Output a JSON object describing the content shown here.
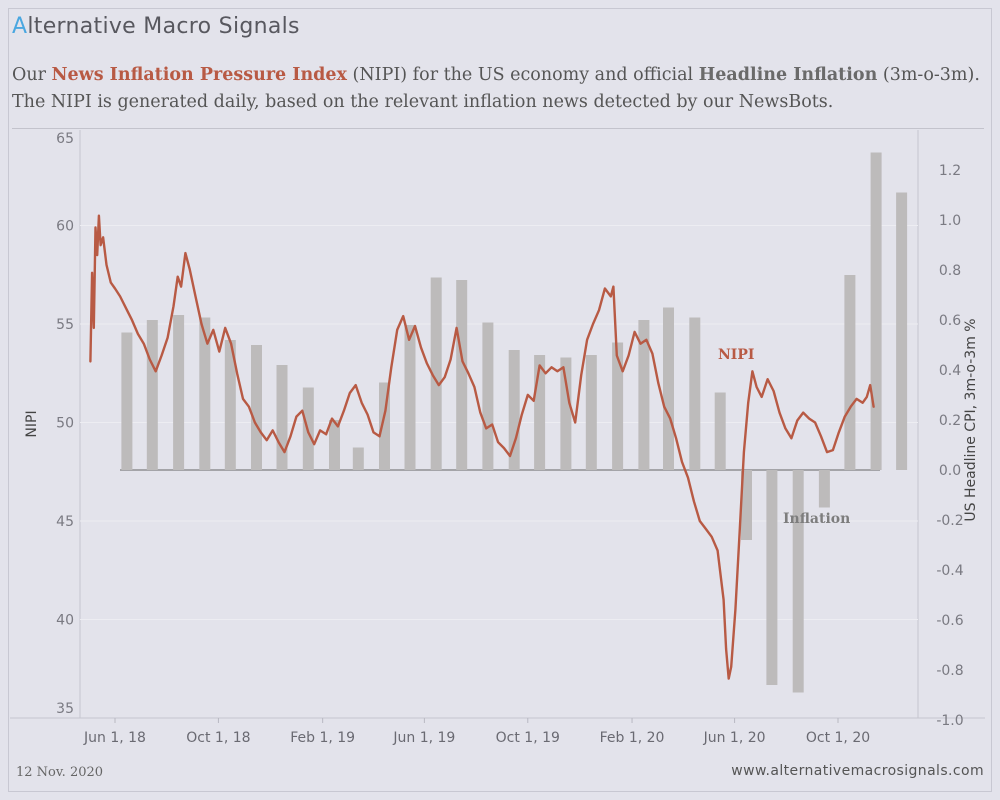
{
  "brand": {
    "first_letter": "A",
    "rest": "lternative Macro Signals"
  },
  "subtitle": {
    "line1_a": "Our ",
    "line1_nipi": "News Inflation Pressure Index",
    "line1_b": " (NIPI) for the US economy and official ",
    "line1_infl": "Headline Inflation",
    "line1_c": " (3m-o-3m).",
    "line2": "The NIPI is generated daily, based on the relevant inflation news detected by our NewsBots."
  },
  "footer": {
    "date": "12 Nov. 2020",
    "url": "www.alternativemacrosignals.com"
  },
  "colors": {
    "nipi": "#b85a44",
    "bars": "#bdbbbb",
    "background": "#e3e3eb"
  },
  "chart_data": {
    "type": "bar+line",
    "left_axis": {
      "label": "NIPI",
      "ticks": [
        35,
        40,
        45,
        50,
        55,
        60,
        65
      ],
      "range": [
        35,
        65
      ]
    },
    "right_axis": {
      "label": "US Headline CPI, 3m-o-3m %",
      "ticks": [
        "1.2",
        "1.0",
        "0.8",
        "0.6",
        "0.4",
        "0.2",
        "0.0",
        "-0.2",
        "-0.4",
        "-0.6",
        "-0.8",
        "-1.0"
      ],
      "range": [
        -1.0,
        1.3
      ]
    },
    "x_axis": {
      "ticks": [
        {
          "label": "Jun 1, 18",
          "date": "2018-06-01"
        },
        {
          "label": "Oct 1, 18",
          "date": "2018-10-01"
        },
        {
          "label": "Feb 1, 19",
          "date": "2019-02-01"
        },
        {
          "label": "Jun 1, 19",
          "date": "2019-06-01"
        },
        {
          "label": "Oct 1, 19",
          "date": "2019-10-01"
        },
        {
          "label": "Feb 1, 20",
          "date": "2020-02-01"
        },
        {
          "label": "Jun 1, 20",
          "date": "2020-06-01"
        },
        {
          "label": "Oct 1, 20",
          "date": "2020-10-01"
        }
      ],
      "range": [
        "2018-04-15",
        "2020-12-20"
      ]
    },
    "annotations": {
      "nipi": "NIPI",
      "inflation": "Inflation"
    },
    "inflation_series": [
      {
        "date": "2018-06-15",
        "value": 0.55
      },
      {
        "date": "2018-07-15",
        "value": 0.6
      },
      {
        "date": "2018-08-15",
        "value": 0.62
      },
      {
        "date": "2018-09-15",
        "value": 0.61
      },
      {
        "date": "2018-10-15",
        "value": 0.52
      },
      {
        "date": "2018-11-15",
        "value": 0.5
      },
      {
        "date": "2018-12-15",
        "value": 0.42
      },
      {
        "date": "2019-01-15",
        "value": 0.33
      },
      {
        "date": "2019-02-15",
        "value": 0.2
      },
      {
        "date": "2019-03-15",
        "value": 0.09
      },
      {
        "date": "2019-04-15",
        "value": 0.35
      },
      {
        "date": "2019-05-15",
        "value": 0.58
      },
      {
        "date": "2019-06-15",
        "value": 0.77
      },
      {
        "date": "2019-07-15",
        "value": 0.76
      },
      {
        "date": "2019-08-15",
        "value": 0.59
      },
      {
        "date": "2019-09-15",
        "value": 0.48
      },
      {
        "date": "2019-10-15",
        "value": 0.46
      },
      {
        "date": "2019-11-15",
        "value": 0.45
      },
      {
        "date": "2019-12-15",
        "value": 0.46
      },
      {
        "date": "2020-01-15",
        "value": 0.51
      },
      {
        "date": "2020-02-15",
        "value": 0.6
      },
      {
        "date": "2020-03-15",
        "value": 0.65
      },
      {
        "date": "2020-04-15",
        "value": 0.61
      },
      {
        "date": "2020-05-15",
        "value": 0.31
      },
      {
        "date": "2020-06-15",
        "value": -0.28
      },
      {
        "date": "2020-07-15",
        "value": -0.86
      },
      {
        "date": "2020-08-15",
        "value": -0.89
      },
      {
        "date": "2020-09-15",
        "value": -0.15
      },
      {
        "date": "2020-10-15",
        "value": 0.78
      },
      {
        "date": "2020-11-15",
        "value": 1.27
      },
      {
        "date": "2020-12-15",
        "value": 1.11
      }
    ],
    "nipi_series": [
      [
        "2018-05-03",
        53.1
      ],
      [
        "2018-05-05",
        57.6
      ],
      [
        "2018-05-07",
        54.8
      ],
      [
        "2018-05-09",
        59.9
      ],
      [
        "2018-05-11",
        58.5
      ],
      [
        "2018-05-13",
        60.5
      ],
      [
        "2018-05-15",
        59.0
      ],
      [
        "2018-05-18",
        59.4
      ],
      [
        "2018-05-22",
        58.0
      ],
      [
        "2018-05-27",
        57.1
      ],
      [
        "2018-06-01",
        56.8
      ],
      [
        "2018-06-07",
        56.4
      ],
      [
        "2018-06-14",
        55.8
      ],
      [
        "2018-06-21",
        55.2
      ],
      [
        "2018-06-28",
        54.5
      ],
      [
        "2018-07-05",
        54.0
      ],
      [
        "2018-07-12",
        53.2
      ],
      [
        "2018-07-19",
        52.6
      ],
      [
        "2018-07-26",
        53.4
      ],
      [
        "2018-08-02",
        54.3
      ],
      [
        "2018-08-09",
        55.9
      ],
      [
        "2018-08-14",
        57.4
      ],
      [
        "2018-08-18",
        56.9
      ],
      [
        "2018-08-23",
        58.6
      ],
      [
        "2018-08-28",
        57.8
      ],
      [
        "2018-09-04",
        56.4
      ],
      [
        "2018-09-11",
        55.0
      ],
      [
        "2018-09-18",
        54.0
      ],
      [
        "2018-09-25",
        54.7
      ],
      [
        "2018-10-02",
        53.6
      ],
      [
        "2018-10-09",
        54.8
      ],
      [
        "2018-10-16",
        54.0
      ],
      [
        "2018-10-23",
        52.5
      ],
      [
        "2018-10-30",
        51.2
      ],
      [
        "2018-11-06",
        50.8
      ],
      [
        "2018-11-13",
        50.0
      ],
      [
        "2018-11-20",
        49.5
      ],
      [
        "2018-11-27",
        49.1
      ],
      [
        "2018-12-04",
        49.6
      ],
      [
        "2018-12-11",
        49.0
      ],
      [
        "2018-12-18",
        48.5
      ],
      [
        "2018-12-25",
        49.3
      ],
      [
        "2019-01-01",
        50.3
      ],
      [
        "2019-01-08",
        50.6
      ],
      [
        "2019-01-15",
        49.5
      ],
      [
        "2019-01-22",
        48.9
      ],
      [
        "2019-01-29",
        49.6
      ],
      [
        "2019-02-05",
        49.4
      ],
      [
        "2019-02-12",
        50.2
      ],
      [
        "2019-02-19",
        49.8
      ],
      [
        "2019-02-26",
        50.6
      ],
      [
        "2019-03-05",
        51.5
      ],
      [
        "2019-03-12",
        51.9
      ],
      [
        "2019-03-19",
        51.0
      ],
      [
        "2019-03-26",
        50.4
      ],
      [
        "2019-04-02",
        49.5
      ],
      [
        "2019-04-09",
        49.3
      ],
      [
        "2019-04-16",
        50.6
      ],
      [
        "2019-04-23",
        52.8
      ],
      [
        "2019-04-30",
        54.7
      ],
      [
        "2019-05-07",
        55.4
      ],
      [
        "2019-05-14",
        54.2
      ],
      [
        "2019-05-21",
        54.9
      ],
      [
        "2019-05-28",
        53.8
      ],
      [
        "2019-06-04",
        53.0
      ],
      [
        "2019-06-11",
        52.4
      ],
      [
        "2019-06-18",
        51.9
      ],
      [
        "2019-06-25",
        52.3
      ],
      [
        "2019-07-02",
        53.2
      ],
      [
        "2019-07-09",
        54.8
      ],
      [
        "2019-07-16",
        53.1
      ],
      [
        "2019-07-23",
        52.5
      ],
      [
        "2019-07-30",
        51.8
      ],
      [
        "2019-08-06",
        50.5
      ],
      [
        "2019-08-13",
        49.7
      ],
      [
        "2019-08-20",
        49.9
      ],
      [
        "2019-08-27",
        49.0
      ],
      [
        "2019-09-03",
        48.7
      ],
      [
        "2019-09-10",
        48.3
      ],
      [
        "2019-09-17",
        49.2
      ],
      [
        "2019-09-24",
        50.4
      ],
      [
        "2019-10-01",
        51.4
      ],
      [
        "2019-10-08",
        51.1
      ],
      [
        "2019-10-15",
        52.9
      ],
      [
        "2019-10-22",
        52.5
      ],
      [
        "2019-10-29",
        52.8
      ],
      [
        "2019-11-05",
        52.6
      ],
      [
        "2019-11-12",
        52.8
      ],
      [
        "2019-11-19",
        51.0
      ],
      [
        "2019-11-26",
        50.0
      ],
      [
        "2019-12-03",
        52.4
      ],
      [
        "2019-12-10",
        54.2
      ],
      [
        "2019-12-17",
        55.0
      ],
      [
        "2019-12-24",
        55.7
      ],
      [
        "2019-12-31",
        56.8
      ],
      [
        "2020-01-07",
        56.4
      ],
      [
        "2020-01-10",
        56.9
      ],
      [
        "2020-01-14",
        53.4
      ],
      [
        "2020-01-21",
        52.6
      ],
      [
        "2020-01-28",
        53.4
      ],
      [
        "2020-02-04",
        54.6
      ],
      [
        "2020-02-11",
        54.0
      ],
      [
        "2020-02-18",
        54.2
      ],
      [
        "2020-02-25",
        53.5
      ],
      [
        "2020-03-03",
        52.0
      ],
      [
        "2020-03-10",
        50.8
      ],
      [
        "2020-03-17",
        50.2
      ],
      [
        "2020-03-24",
        49.2
      ],
      [
        "2020-03-31",
        48.0
      ],
      [
        "2020-04-07",
        47.2
      ],
      [
        "2020-04-14",
        46.0
      ],
      [
        "2020-04-21",
        45.0
      ],
      [
        "2020-04-28",
        44.6
      ],
      [
        "2020-05-05",
        44.2
      ],
      [
        "2020-05-12",
        43.5
      ],
      [
        "2020-05-19",
        41.0
      ],
      [
        "2020-05-22",
        38.5
      ],
      [
        "2020-05-25",
        37.0
      ],
      [
        "2020-05-28",
        37.6
      ],
      [
        "2020-06-02",
        40.5
      ],
      [
        "2020-06-07",
        44.5
      ],
      [
        "2020-06-12",
        48.5
      ],
      [
        "2020-06-17",
        51.0
      ],
      [
        "2020-06-22",
        52.6
      ],
      [
        "2020-06-27",
        51.8
      ],
      [
        "2020-07-03",
        51.3
      ],
      [
        "2020-07-10",
        52.2
      ],
      [
        "2020-07-17",
        51.6
      ],
      [
        "2020-07-24",
        50.5
      ],
      [
        "2020-07-31",
        49.7
      ],
      [
        "2020-08-07",
        49.2
      ],
      [
        "2020-08-14",
        50.1
      ],
      [
        "2020-08-21",
        50.5
      ],
      [
        "2020-08-28",
        50.2
      ],
      [
        "2020-09-04",
        50.0
      ],
      [
        "2020-09-11",
        49.3
      ],
      [
        "2020-09-18",
        48.5
      ],
      [
        "2020-09-25",
        48.6
      ],
      [
        "2020-10-02",
        49.5
      ],
      [
        "2020-10-09",
        50.3
      ],
      [
        "2020-10-16",
        50.8
      ],
      [
        "2020-10-23",
        51.2
      ],
      [
        "2020-10-30",
        51.0
      ],
      [
        "2020-11-04",
        51.3
      ],
      [
        "2020-11-08",
        51.9
      ],
      [
        "2020-11-12",
        50.8
      ]
    ]
  }
}
